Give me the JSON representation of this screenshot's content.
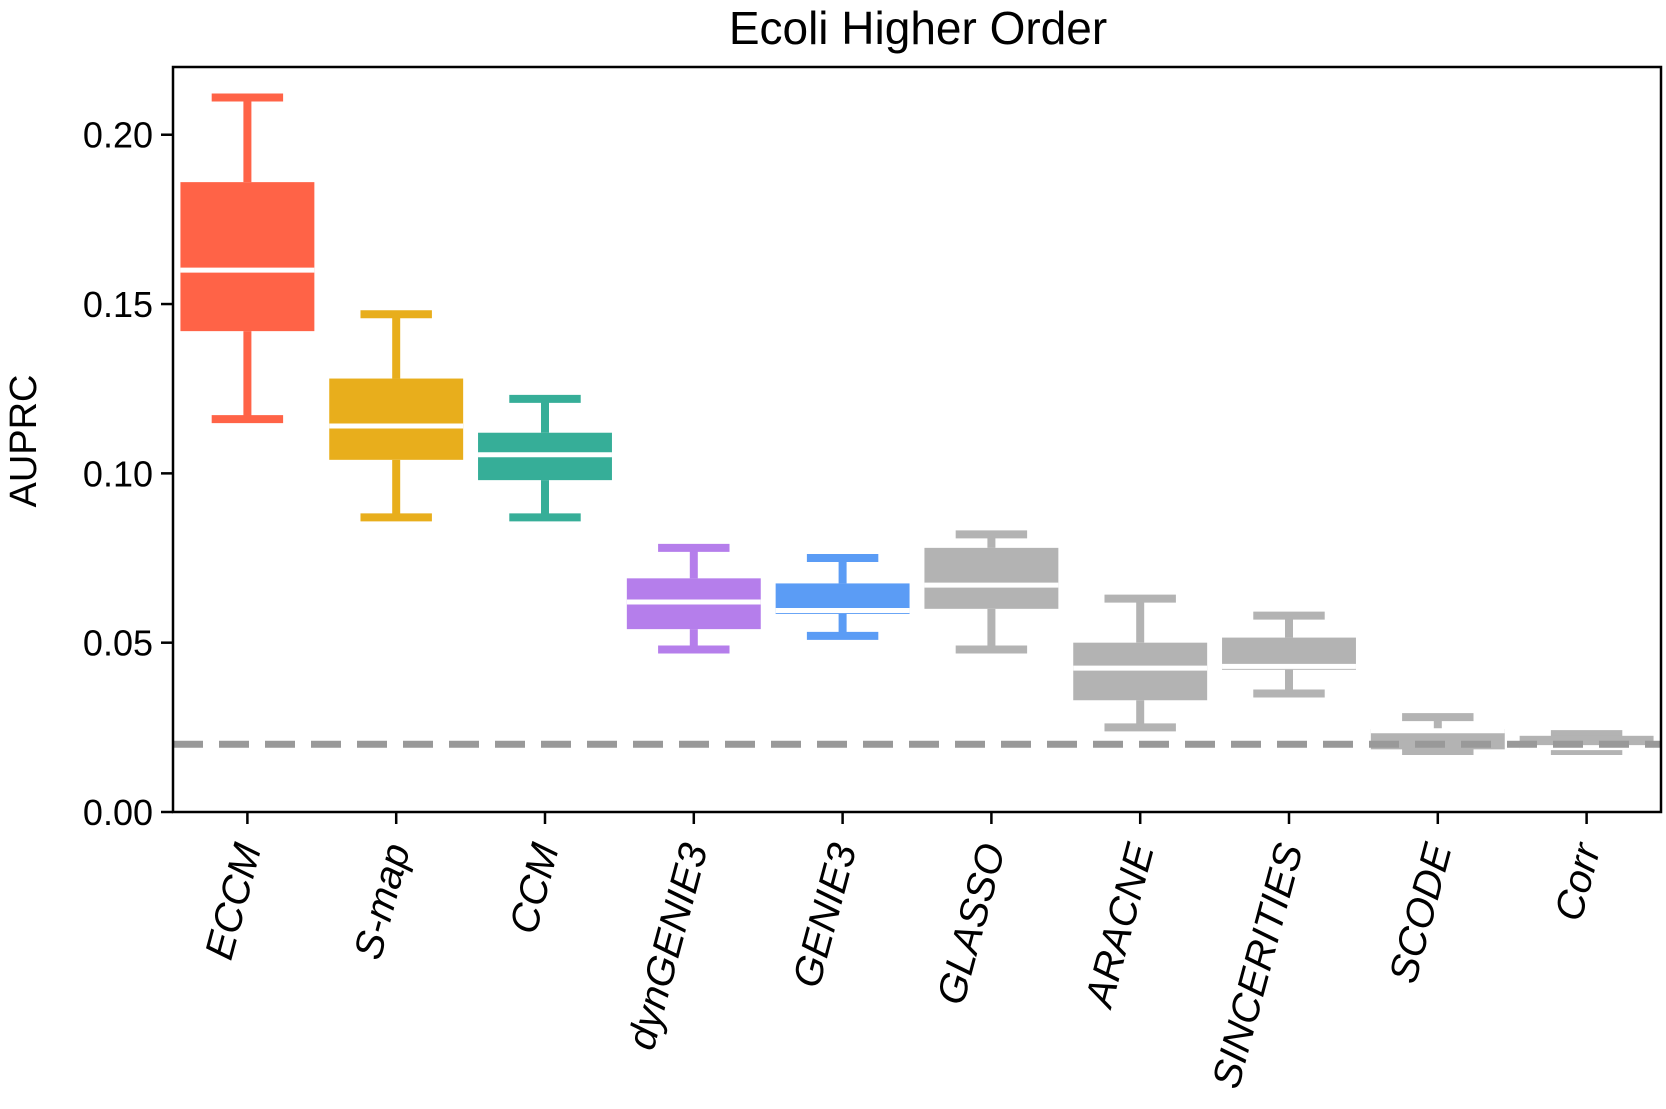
{
  "chart_data": {
    "type": "box",
    "title": "Ecoli Higher Order",
    "xlabel": "",
    "ylabel": "AUPRC",
    "ylim": [
      0.0,
      0.22
    ],
    "yticks": [
      0.0,
      0.05,
      0.1,
      0.15,
      0.2
    ],
    "ytick_labels": [
      "0.00",
      "0.05",
      "0.10",
      "0.15",
      "0.20"
    ],
    "grid": false,
    "baseline": {
      "value": 0.02,
      "style": "dashed",
      "color": "#999999"
    },
    "categories": [
      "ECCM",
      "S-map",
      "CCM",
      "dynGENIE3",
      "GENIE3",
      "GLASSO",
      "ARACNE",
      "SINCERITIES",
      "SCODE",
      "Corr"
    ],
    "boxes": [
      {
        "label": "ECCM",
        "whislo": 0.116,
        "q1": 0.142,
        "med": 0.16,
        "q3": 0.186,
        "whishi": 0.211,
        "color": "#FF6347"
      },
      {
        "label": "S-map",
        "whislo": 0.087,
        "q1": 0.104,
        "med": 0.114,
        "q3": 0.128,
        "whishi": 0.147,
        "color": "#E8AE1C"
      },
      {
        "label": "CCM",
        "whislo": 0.087,
        "q1": 0.098,
        "med": 0.1055,
        "q3": 0.112,
        "whishi": 0.122,
        "color": "#36AE98"
      },
      {
        "label": "dynGENIE3",
        "whislo": 0.048,
        "q1": 0.054,
        "med": 0.062,
        "q3": 0.069,
        "whishi": 0.078,
        "color": "#B57EEB"
      },
      {
        "label": "GENIE3",
        "whislo": 0.052,
        "q1": 0.0585,
        "med": 0.0595,
        "q3": 0.0675,
        "whishi": 0.075,
        "color": "#5B9CF5"
      },
      {
        "label": "GLASSO",
        "whislo": 0.048,
        "q1": 0.06,
        "med": 0.067,
        "q3": 0.078,
        "whishi": 0.082,
        "color": "#B3B3B3"
      },
      {
        "label": "ARACNE",
        "whislo": 0.025,
        "q1": 0.033,
        "med": 0.0425,
        "q3": 0.05,
        "whishi": 0.063,
        "color": "#B3B3B3"
      },
      {
        "label": "SINCERITIES",
        "whislo": 0.035,
        "q1": 0.042,
        "med": 0.043,
        "q3": 0.0515,
        "whishi": 0.058,
        "color": "#B3B3B3"
      },
      {
        "label": "SCODE",
        "whislo": 0.018,
        "q1": 0.0185,
        "med": 0.024,
        "q3": 0.0245,
        "whishi": 0.028,
        "color": "#B3B3B3"
      },
      {
        "label": "Corr",
        "whislo": 0.018,
        "q1": 0.0185,
        "med": 0.019,
        "q3": 0.0225,
        "whishi": 0.023,
        "color": "#B3B3B3"
      }
    ]
  }
}
